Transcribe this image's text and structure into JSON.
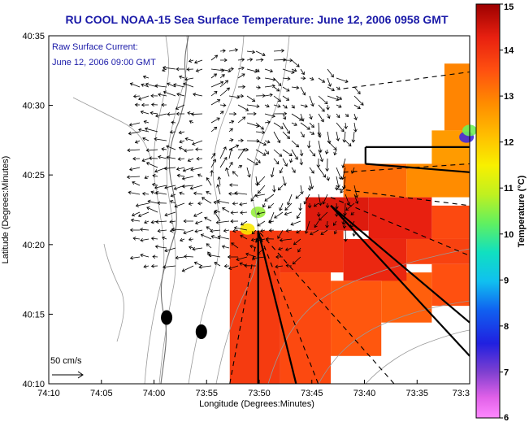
{
  "chart_data": {
    "type": "heatmap",
    "title": "RU COOL  NOAA-15  Sea Surface Temperature:  June 12, 2006 0958 GMT",
    "annotation_lines": [
      "Raw Surface Current:",
      "June 12, 2006 09:00 GMT"
    ],
    "xlabel": "Longitude (Degrees:Minutes)",
    "ylabel": "Latitude (Degrees:Minutes)",
    "xlim": [
      -74.1667,
      -73.5
    ],
    "ylim": [
      40.1667,
      40.5833
    ],
    "x_ticks": [
      {
        "v": -74.1667,
        "label": "74:10"
      },
      {
        "v": -74.0833,
        "label": "74:05"
      },
      {
        "v": -74.0,
        "label": "74:00"
      },
      {
        "v": -73.9167,
        "label": "73:55"
      },
      {
        "v": -73.8333,
        "label": "73:50"
      },
      {
        "v": -73.75,
        "label": "73:45"
      },
      {
        "v": -73.6667,
        "label": "73:40"
      },
      {
        "v": -73.5833,
        "label": "73:35"
      },
      {
        "v": -73.5,
        "label": "73:3"
      }
    ],
    "y_ticks": [
      {
        "v": 40.1667,
        "label": "40:10"
      },
      {
        "v": 40.25,
        "label": "40:15"
      },
      {
        "v": 40.3333,
        "label": "40:20"
      },
      {
        "v": 40.4167,
        "label": "40:25"
      },
      {
        "v": 40.5,
        "label": "40:30"
      },
      {
        "v": 40.5833,
        "label": "40:35"
      }
    ],
    "colorbar": {
      "label": "Temperature (°C)",
      "range": [
        6,
        15
      ],
      "ticks": [
        6,
        7,
        8,
        9,
        10,
        11,
        12,
        13,
        14,
        15
      ]
    },
    "scale_arrow_label": "50 cm/s",
    "sst_cells": [
      {
        "x": [
          -73.88,
          -73.8
        ],
        "y": [
          40.167,
          40.35
        ],
        "t": 13.9
      },
      {
        "x": [
          -73.8,
          -73.72
        ],
        "y": [
          40.167,
          40.3
        ],
        "t": 13.7
      },
      {
        "x": [
          -73.72,
          -73.64
        ],
        "y": [
          40.2,
          40.29
        ],
        "t": 13.5
      },
      {
        "x": [
          -73.64,
          -73.56
        ],
        "y": [
          40.24,
          40.3
        ],
        "t": 13.4
      },
      {
        "x": [
          -73.56,
          -73.5
        ],
        "y": [
          40.26,
          40.31
        ],
        "t": 13.6
      },
      {
        "x": [
          -73.8,
          -73.7
        ],
        "y": [
          40.3,
          40.35
        ],
        "t": 14.0
      },
      {
        "x": [
          -73.7,
          -73.6
        ],
        "y": [
          40.29,
          40.34
        ],
        "t": 14.2
      },
      {
        "x": [
          -73.6,
          -73.5
        ],
        "y": [
          40.31,
          40.34
        ],
        "t": 13.8
      },
      {
        "x": [
          -73.76,
          -73.66
        ],
        "y": [
          40.35,
          40.39
        ],
        "t": 14.4
      },
      {
        "x": [
          -73.66,
          -73.56
        ],
        "y": [
          40.34,
          40.39
        ],
        "t": 14.3
      },
      {
        "x": [
          -73.56,
          -73.5
        ],
        "y": [
          40.34,
          40.38
        ],
        "t": 13.7
      },
      {
        "x": [
          -73.7,
          -73.6
        ],
        "y": [
          40.39,
          40.43
        ],
        "t": 13.2
      },
      {
        "x": [
          -73.6,
          -73.5
        ],
        "y": [
          40.39,
          40.43
        ],
        "t": 12.8
      },
      {
        "x": [
          -73.56,
          -73.5
        ],
        "y": [
          40.43,
          40.47
        ],
        "t": 12.6
      },
      {
        "x": [
          -73.54,
          -73.5
        ],
        "y": [
          40.47,
          40.55
        ],
        "t": 12.9
      }
    ],
    "sst_spots": [
      {
        "x": -73.835,
        "y": 40.372,
        "t": 10.6
      },
      {
        "x": -73.852,
        "y": 40.352,
        "t": 11.6
      },
      {
        "x": -73.505,
        "y": 40.462,
        "t": 7.4
      },
      {
        "x": -73.5,
        "y": 40.47,
        "t": 10.3
      }
    ],
    "ship_tracks": [
      {
        "style": "solid",
        "points": [
          [
            -73.665,
            40.45
          ],
          [
            -73.5,
            40.45
          ]
        ]
      },
      {
        "style": "solid",
        "points": [
          [
            -73.665,
            40.45
          ],
          [
            -73.665,
            40.43
          ]
        ]
      },
      {
        "style": "solid",
        "points": [
          [
            -73.665,
            40.43
          ],
          [
            -73.5,
            40.42
          ]
        ]
      },
      {
        "style": "solid",
        "points": [
          [
            -73.72,
            40.38
          ],
          [
            -73.5,
            40.24
          ]
        ]
      },
      {
        "style": "solid",
        "points": [
          [
            -73.72,
            40.38
          ],
          [
            -73.5,
            40.2
          ]
        ]
      },
      {
        "style": "solid",
        "points": [
          [
            -73.835,
            40.167
          ],
          [
            -73.835,
            40.35
          ]
        ]
      },
      {
        "style": "solid",
        "points": [
          [
            -73.775,
            40.167
          ],
          [
            -73.835,
            40.35
          ]
        ]
      },
      {
        "style": "dashed",
        "points": [
          [
            -73.88,
            40.167
          ],
          [
            -73.835,
            40.35
          ]
        ]
      },
      {
        "style": "dashed",
        "points": [
          [
            -73.74,
            40.167
          ],
          [
            -73.835,
            40.35
          ]
        ]
      },
      {
        "style": "dashed",
        "points": [
          [
            -73.62,
            40.167
          ],
          [
            -73.835,
            40.35
          ]
        ]
      },
      {
        "style": "dashed",
        "points": [
          [
            -73.7,
            40.52
          ],
          [
            -73.5,
            40.54
          ]
        ]
      },
      {
        "style": "dashed",
        "points": [
          [
            -73.7,
            40.42
          ],
          [
            -73.5,
            40.43
          ]
        ]
      },
      {
        "style": "dashed",
        "points": [
          [
            -73.71,
            40.4
          ],
          [
            -73.5,
            40.38
          ]
        ]
      },
      {
        "style": "dashed",
        "points": [
          [
            -73.72,
            40.39
          ],
          [
            -73.5,
            40.32
          ]
        ]
      }
    ],
    "ship_dots": [
      {
        "x": -73.98,
        "y": 40.246
      },
      {
        "x": -73.925,
        "y": 40.229
      }
    ]
  }
}
